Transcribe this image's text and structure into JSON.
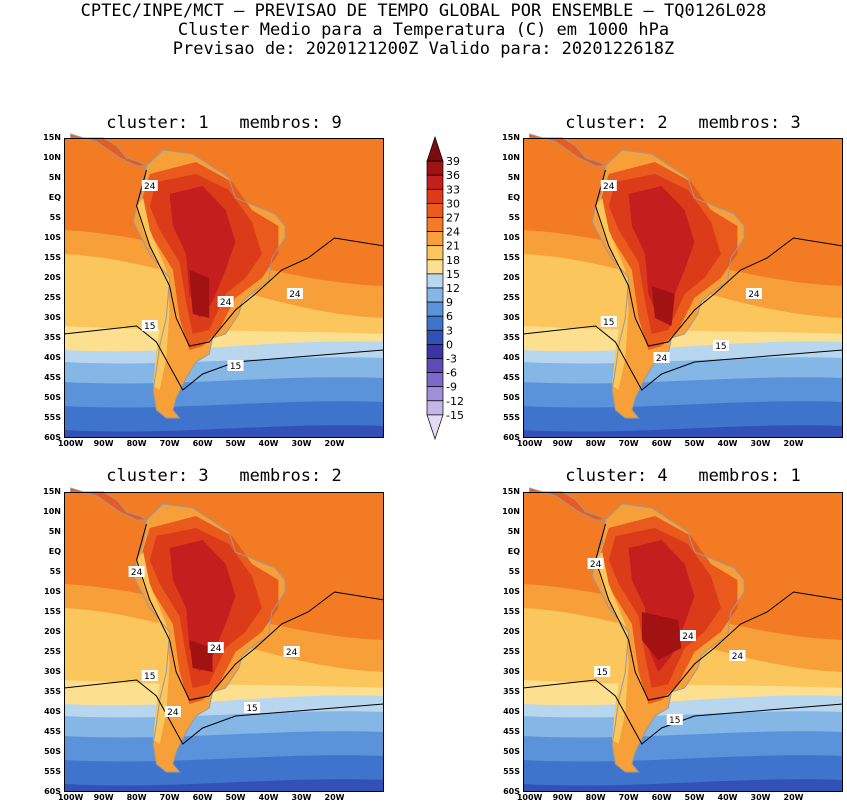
{
  "header": {
    "line1": "CPTEC/INPE/MCT – PREVISAO DE TEMPO GLOBAL POR ENSEMBLE – TQ0126L028",
    "line2": "Cluster Medio para a Temperatura (C) em 1000 hPa",
    "line3": "Previsao de: 2020121200Z   Valido para: 2020122618Z"
  },
  "panels": [
    {
      "title": "cluster: 1   membros: 9",
      "contour_labels": [
        "24",
        "24",
        "24",
        "15",
        "15"
      ],
      "variant": 1
    },
    {
      "title": "cluster: 2   membros: 3",
      "contour_labels": [
        "24",
        "24",
        "24",
        "15",
        "15"
      ],
      "variant": 2
    },
    {
      "title": "cluster: 3   membros: 2",
      "contour_labels": [
        "24",
        "24",
        "24",
        "24",
        "15",
        "15"
      ],
      "variant": 3
    },
    {
      "title": "cluster: 4   membros: 1",
      "contour_labels": [
        "24",
        "24",
        "24",
        "15",
        "15"
      ],
      "variant": 4
    }
  ],
  "axes": {
    "lat_labels": [
      "15N",
      "10N",
      "5N",
      "EQ",
      "5S",
      "10S",
      "15S",
      "20S",
      "25S",
      "30S",
      "35S",
      "40S",
      "45S",
      "50S",
      "55S",
      "60S"
    ],
    "lon_labels": [
      "100W",
      "90W",
      "80W",
      "70W",
      "60W",
      "50W",
      "40W",
      "30W",
      "20W"
    ]
  },
  "colorbar": {
    "labels": [
      "39",
      "36",
      "33",
      "30",
      "27",
      "24",
      "21",
      "18",
      "15",
      "12",
      "9",
      "6",
      "3",
      "0",
      "-3",
      "-6",
      "-9",
      "-12",
      "-15"
    ],
    "colors": [
      "#7a0d0d",
      "#a31212",
      "#c41e1e",
      "#dc3b1a",
      "#ea5a1c",
      "#f27b24",
      "#f7a03a",
      "#fbc65c",
      "#fde08f",
      "#b9d6ef",
      "#84b6e6",
      "#5a93d9",
      "#3f74cc",
      "#3151b7",
      "#3b33a8",
      "#5c4bb8",
      "#7d6ac8",
      "#a08fd8",
      "#c3b6e8",
      "#e3dcf5"
    ]
  }
}
